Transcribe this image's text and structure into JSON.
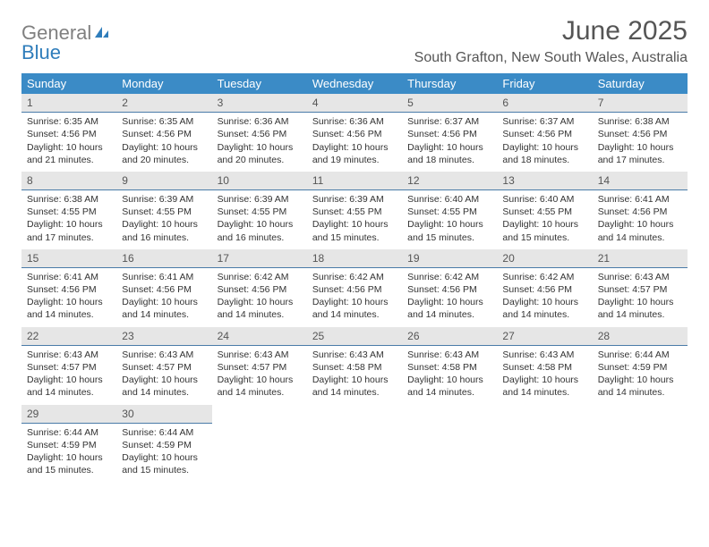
{
  "logo": {
    "word1": "General",
    "word2": "Blue"
  },
  "title": "June 2025",
  "location": "South Grafton, New South Wales, Australia",
  "colors": {
    "header_bg": "#3b8bc6",
    "header_text": "#ffffff",
    "daynum_bg": "#e6e6e6",
    "daynum_border": "#4a7ba8",
    "text": "#333333",
    "title_text": "#555555",
    "logo_gray": "#808080",
    "logo_blue": "#2f7dbb"
  },
  "day_names": [
    "Sunday",
    "Monday",
    "Tuesday",
    "Wednesday",
    "Thursday",
    "Friday",
    "Saturday"
  ],
  "weeks": [
    [
      {
        "n": "1",
        "sr": "Sunrise: 6:35 AM",
        "ss": "Sunset: 4:56 PM",
        "d1": "Daylight: 10 hours",
        "d2": "and 21 minutes."
      },
      {
        "n": "2",
        "sr": "Sunrise: 6:35 AM",
        "ss": "Sunset: 4:56 PM",
        "d1": "Daylight: 10 hours",
        "d2": "and 20 minutes."
      },
      {
        "n": "3",
        "sr": "Sunrise: 6:36 AM",
        "ss": "Sunset: 4:56 PM",
        "d1": "Daylight: 10 hours",
        "d2": "and 20 minutes."
      },
      {
        "n": "4",
        "sr": "Sunrise: 6:36 AM",
        "ss": "Sunset: 4:56 PM",
        "d1": "Daylight: 10 hours",
        "d2": "and 19 minutes."
      },
      {
        "n": "5",
        "sr": "Sunrise: 6:37 AM",
        "ss": "Sunset: 4:56 PM",
        "d1": "Daylight: 10 hours",
        "d2": "and 18 minutes."
      },
      {
        "n": "6",
        "sr": "Sunrise: 6:37 AM",
        "ss": "Sunset: 4:56 PM",
        "d1": "Daylight: 10 hours",
        "d2": "and 18 minutes."
      },
      {
        "n": "7",
        "sr": "Sunrise: 6:38 AM",
        "ss": "Sunset: 4:56 PM",
        "d1": "Daylight: 10 hours",
        "d2": "and 17 minutes."
      }
    ],
    [
      {
        "n": "8",
        "sr": "Sunrise: 6:38 AM",
        "ss": "Sunset: 4:55 PM",
        "d1": "Daylight: 10 hours",
        "d2": "and 17 minutes."
      },
      {
        "n": "9",
        "sr": "Sunrise: 6:39 AM",
        "ss": "Sunset: 4:55 PM",
        "d1": "Daylight: 10 hours",
        "d2": "and 16 minutes."
      },
      {
        "n": "10",
        "sr": "Sunrise: 6:39 AM",
        "ss": "Sunset: 4:55 PM",
        "d1": "Daylight: 10 hours",
        "d2": "and 16 minutes."
      },
      {
        "n": "11",
        "sr": "Sunrise: 6:39 AM",
        "ss": "Sunset: 4:55 PM",
        "d1": "Daylight: 10 hours",
        "d2": "and 15 minutes."
      },
      {
        "n": "12",
        "sr": "Sunrise: 6:40 AM",
        "ss": "Sunset: 4:55 PM",
        "d1": "Daylight: 10 hours",
        "d2": "and 15 minutes."
      },
      {
        "n": "13",
        "sr": "Sunrise: 6:40 AM",
        "ss": "Sunset: 4:55 PM",
        "d1": "Daylight: 10 hours",
        "d2": "and 15 minutes."
      },
      {
        "n": "14",
        "sr": "Sunrise: 6:41 AM",
        "ss": "Sunset: 4:56 PM",
        "d1": "Daylight: 10 hours",
        "d2": "and 14 minutes."
      }
    ],
    [
      {
        "n": "15",
        "sr": "Sunrise: 6:41 AM",
        "ss": "Sunset: 4:56 PM",
        "d1": "Daylight: 10 hours",
        "d2": "and 14 minutes."
      },
      {
        "n": "16",
        "sr": "Sunrise: 6:41 AM",
        "ss": "Sunset: 4:56 PM",
        "d1": "Daylight: 10 hours",
        "d2": "and 14 minutes."
      },
      {
        "n": "17",
        "sr": "Sunrise: 6:42 AM",
        "ss": "Sunset: 4:56 PM",
        "d1": "Daylight: 10 hours",
        "d2": "and 14 minutes."
      },
      {
        "n": "18",
        "sr": "Sunrise: 6:42 AM",
        "ss": "Sunset: 4:56 PM",
        "d1": "Daylight: 10 hours",
        "d2": "and 14 minutes."
      },
      {
        "n": "19",
        "sr": "Sunrise: 6:42 AM",
        "ss": "Sunset: 4:56 PM",
        "d1": "Daylight: 10 hours",
        "d2": "and 14 minutes."
      },
      {
        "n": "20",
        "sr": "Sunrise: 6:42 AM",
        "ss": "Sunset: 4:56 PM",
        "d1": "Daylight: 10 hours",
        "d2": "and 14 minutes."
      },
      {
        "n": "21",
        "sr": "Sunrise: 6:43 AM",
        "ss": "Sunset: 4:57 PM",
        "d1": "Daylight: 10 hours",
        "d2": "and 14 minutes."
      }
    ],
    [
      {
        "n": "22",
        "sr": "Sunrise: 6:43 AM",
        "ss": "Sunset: 4:57 PM",
        "d1": "Daylight: 10 hours",
        "d2": "and 14 minutes."
      },
      {
        "n": "23",
        "sr": "Sunrise: 6:43 AM",
        "ss": "Sunset: 4:57 PM",
        "d1": "Daylight: 10 hours",
        "d2": "and 14 minutes."
      },
      {
        "n": "24",
        "sr": "Sunrise: 6:43 AM",
        "ss": "Sunset: 4:57 PM",
        "d1": "Daylight: 10 hours",
        "d2": "and 14 minutes."
      },
      {
        "n": "25",
        "sr": "Sunrise: 6:43 AM",
        "ss": "Sunset: 4:58 PM",
        "d1": "Daylight: 10 hours",
        "d2": "and 14 minutes."
      },
      {
        "n": "26",
        "sr": "Sunrise: 6:43 AM",
        "ss": "Sunset: 4:58 PM",
        "d1": "Daylight: 10 hours",
        "d2": "and 14 minutes."
      },
      {
        "n": "27",
        "sr": "Sunrise: 6:43 AM",
        "ss": "Sunset: 4:58 PM",
        "d1": "Daylight: 10 hours",
        "d2": "and 14 minutes."
      },
      {
        "n": "28",
        "sr": "Sunrise: 6:44 AM",
        "ss": "Sunset: 4:59 PM",
        "d1": "Daylight: 10 hours",
        "d2": "and 14 minutes."
      }
    ],
    [
      {
        "n": "29",
        "sr": "Sunrise: 6:44 AM",
        "ss": "Sunset: 4:59 PM",
        "d1": "Daylight: 10 hours",
        "d2": "and 15 minutes."
      },
      {
        "n": "30",
        "sr": "Sunrise: 6:44 AM",
        "ss": "Sunset: 4:59 PM",
        "d1": "Daylight: 10 hours",
        "d2": "and 15 minutes."
      },
      null,
      null,
      null,
      null,
      null
    ]
  ]
}
